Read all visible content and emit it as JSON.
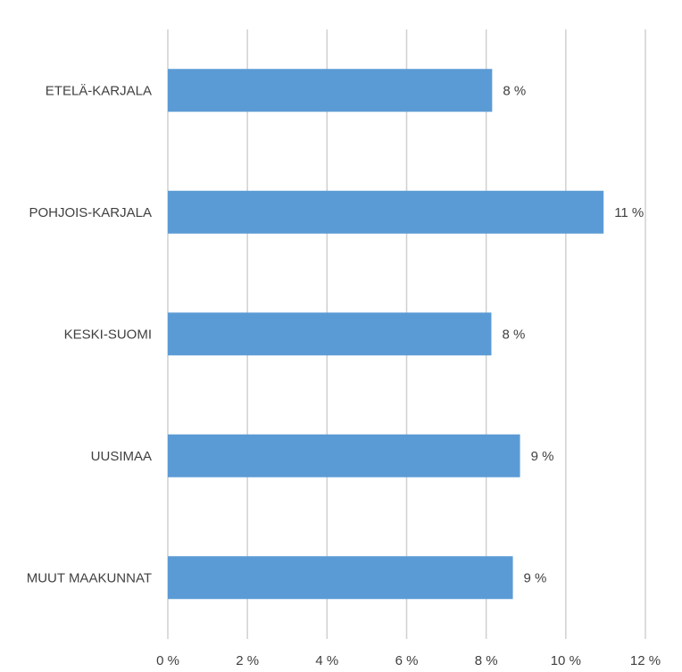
{
  "chart_data": {
    "type": "bar",
    "orientation": "horizontal",
    "categories": [
      "ETELÄ-KARJALA",
      "POHJOIS-KARJALA",
      "KESKI-SUOMI",
      "UUSIMAA",
      "MUUT MAAKUNNAT"
    ],
    "values": [
      8.15,
      10.95,
      8.13,
      8.85,
      8.67
    ],
    "data_labels": [
      "8 %",
      "11 %",
      "8 %",
      "9 %",
      "9 %"
    ],
    "xlim": [
      0,
      12
    ],
    "x_ticks": [
      0,
      2,
      4,
      6,
      8,
      10,
      12
    ],
    "x_tick_labels": [
      "0 %",
      "2 %",
      "4 %",
      "6 %",
      "8 %",
      "10 %",
      "12 %"
    ],
    "grid": true,
    "legend": "none",
    "bar_color": "#5b9bd5",
    "grid_color": "#d0d0d0",
    "text_color": "#404040",
    "title": "",
    "xlabel": "",
    "ylabel": ""
  }
}
